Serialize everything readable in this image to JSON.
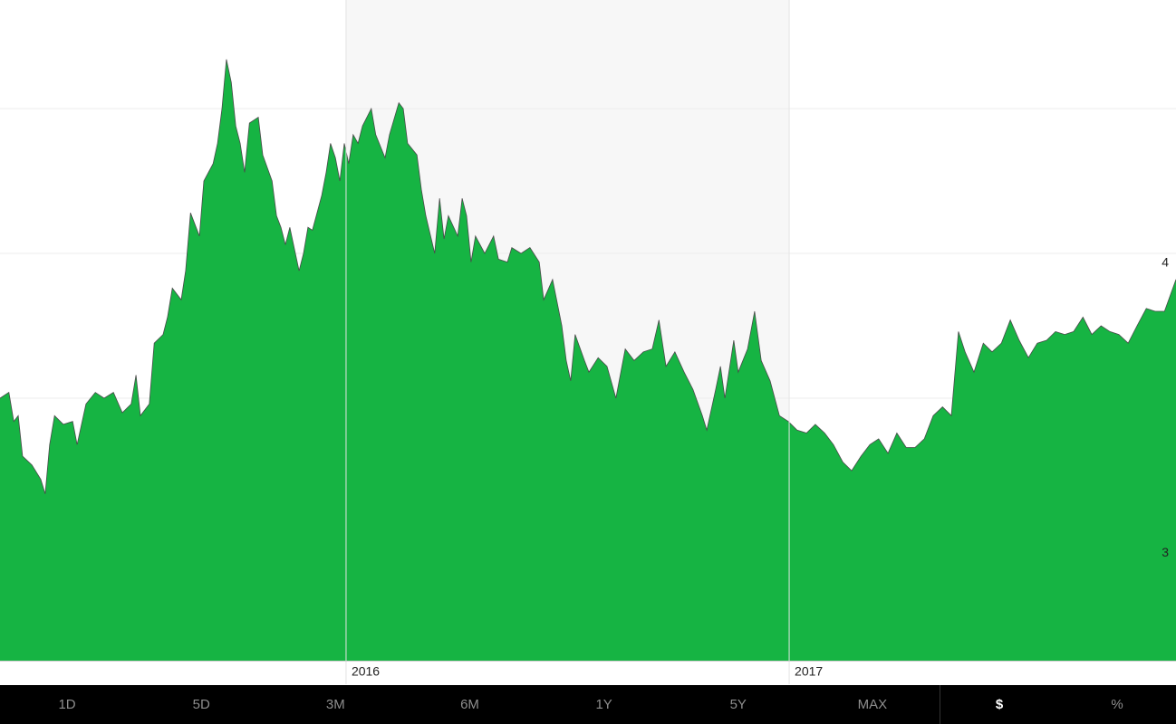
{
  "chart_data": {
    "type": "area",
    "color": "#16b443",
    "line_color": "#4a4a4a",
    "shade_color": "#f7f7f7",
    "x": [
      2015.219,
      2015.239,
      2015.25,
      2015.26,
      2015.27,
      2015.291,
      2015.311,
      2015.321,
      2015.331,
      2015.342,
      2015.362,
      2015.383,
      2015.393,
      2015.413,
      2015.434,
      2015.454,
      2015.475,
      2015.495,
      2015.515,
      2015.526,
      2015.536,
      2015.556,
      2015.567,
      2015.587,
      2015.597,
      2015.608,
      2015.628,
      2015.638,
      2015.649,
      2015.669,
      2015.679,
      2015.7,
      2015.71,
      2015.72,
      2015.73,
      2015.741,
      2015.751,
      2015.761,
      2015.771,
      2015.782,
      2015.802,
      2015.812,
      2015.833,
      2015.843,
      2015.853,
      2015.863,
      2015.873,
      2015.894,
      2015.904,
      2015.914,
      2015.924,
      2015.945,
      2015.955,
      2015.965,
      2015.976,
      2015.986,
      2015.996,
      2016.006,
      2016.016,
      2016.027,
      2016.037,
      2016.057,
      2016.067,
      2016.088,
      2016.098,
      2016.119,
      2016.129,
      2016.139,
      2016.16,
      2016.17,
      2016.18,
      2016.2,
      2016.211,
      2016.221,
      2016.231,
      2016.252,
      2016.262,
      2016.272,
      2016.282,
      2016.292,
      2016.313,
      2016.333,
      2016.344,
      2016.364,
      2016.374,
      2016.395,
      2016.415,
      2016.436,
      2016.446,
      2016.466,
      2016.487,
      2016.497,
      2016.507,
      2016.517,
      2016.538,
      2016.548,
      2016.569,
      2016.589,
      2016.609,
      2016.63,
      2016.65,
      2016.671,
      2016.691,
      2016.706,
      2016.722,
      2016.742,
      2016.763,
      2016.783,
      2016.804,
      2016.814,
      2016.834,
      2016.845,
      2016.855,
      2016.875,
      2016.885,
      2016.906,
      2016.922,
      2016.937,
      2016.957,
      2016.978,
      2016.998,
      2017.018,
      2017.039,
      2017.059,
      2017.08,
      2017.1,
      2017.121,
      2017.141,
      2017.162,
      2017.182,
      2017.202,
      2017.223,
      2017.243,
      2017.264,
      2017.284,
      2017.305,
      2017.325,
      2017.346,
      2017.366,
      2017.382,
      2017.397,
      2017.417,
      2017.438,
      2017.458,
      2017.479,
      2017.499,
      2017.519,
      2017.54,
      2017.56,
      2017.581,
      2017.601,
      2017.622,
      2017.642,
      2017.663,
      2017.683,
      2017.704,
      2017.724,
      2017.744,
      2017.765,
      2017.785,
      2017.806,
      2017.826,
      2017.847,
      2017.873
    ],
    "values": [
      3.5,
      3.52,
      3.42,
      3.44,
      3.3,
      3.27,
      3.22,
      3.17,
      3.34,
      3.44,
      3.41,
      3.42,
      3.34,
      3.48,
      3.52,
      3.5,
      3.52,
      3.45,
      3.48,
      3.58,
      3.44,
      3.48,
      3.69,
      3.72,
      3.78,
      3.88,
      3.84,
      3.94,
      4.14,
      4.06,
      4.25,
      4.31,
      4.38,
      4.5,
      4.67,
      4.59,
      4.44,
      4.38,
      4.28,
      4.45,
      4.47,
      4.34,
      4.25,
      4.13,
      4.09,
      4.03,
      4.09,
      3.94,
      4.0,
      4.09,
      4.08,
      4.2,
      4.28,
      4.38,
      4.33,
      4.25,
      4.38,
      4.31,
      4.41,
      4.38,
      4.44,
      4.5,
      4.41,
      4.33,
      4.41,
      4.52,
      4.5,
      4.38,
      4.34,
      4.22,
      4.13,
      4.0,
      4.19,
      4.05,
      4.13,
      4.06,
      4.19,
      4.13,
      3.97,
      4.06,
      4.0,
      4.06,
      3.98,
      3.97,
      4.02,
      4.0,
      4.02,
      3.97,
      3.84,
      3.91,
      3.75,
      3.63,
      3.56,
      3.72,
      3.63,
      3.59,
      3.64,
      3.61,
      3.5,
      3.67,
      3.63,
      3.66,
      3.67,
      3.77,
      3.61,
      3.66,
      3.59,
      3.53,
      3.44,
      3.39,
      3.53,
      3.61,
      3.5,
      3.7,
      3.59,
      3.67,
      3.8,
      3.63,
      3.56,
      3.44,
      3.42,
      3.39,
      3.38,
      3.41,
      3.38,
      3.34,
      3.28,
      3.25,
      3.3,
      3.34,
      3.36,
      3.31,
      3.38,
      3.33,
      3.33,
      3.36,
      3.44,
      3.47,
      3.44,
      3.73,
      3.66,
      3.59,
      3.69,
      3.66,
      3.69,
      3.77,
      3.7,
      3.64,
      3.69,
      3.7,
      3.73,
      3.72,
      3.73,
      3.78,
      3.72,
      3.75,
      3.73,
      3.72,
      3.69,
      3.75,
      3.81,
      3.8,
      3.8,
      3.91
    ],
    "xlim": [
      2015.219,
      2017.873
    ],
    "xticks": [
      2016,
      2017
    ],
    "ylim": [
      2.594,
      4.875
    ],
    "yticks": [
      3,
      4
    ],
    "gridlines": [
      3,
      3.5,
      4,
      4.5
    ],
    "grid": true
  },
  "toolbar": {
    "ranges": [
      "1D",
      "5D",
      "3M",
      "6M",
      "1Y",
      "5Y",
      "MAX"
    ],
    "units": [
      "$",
      "%"
    ],
    "active_unit": 0
  }
}
